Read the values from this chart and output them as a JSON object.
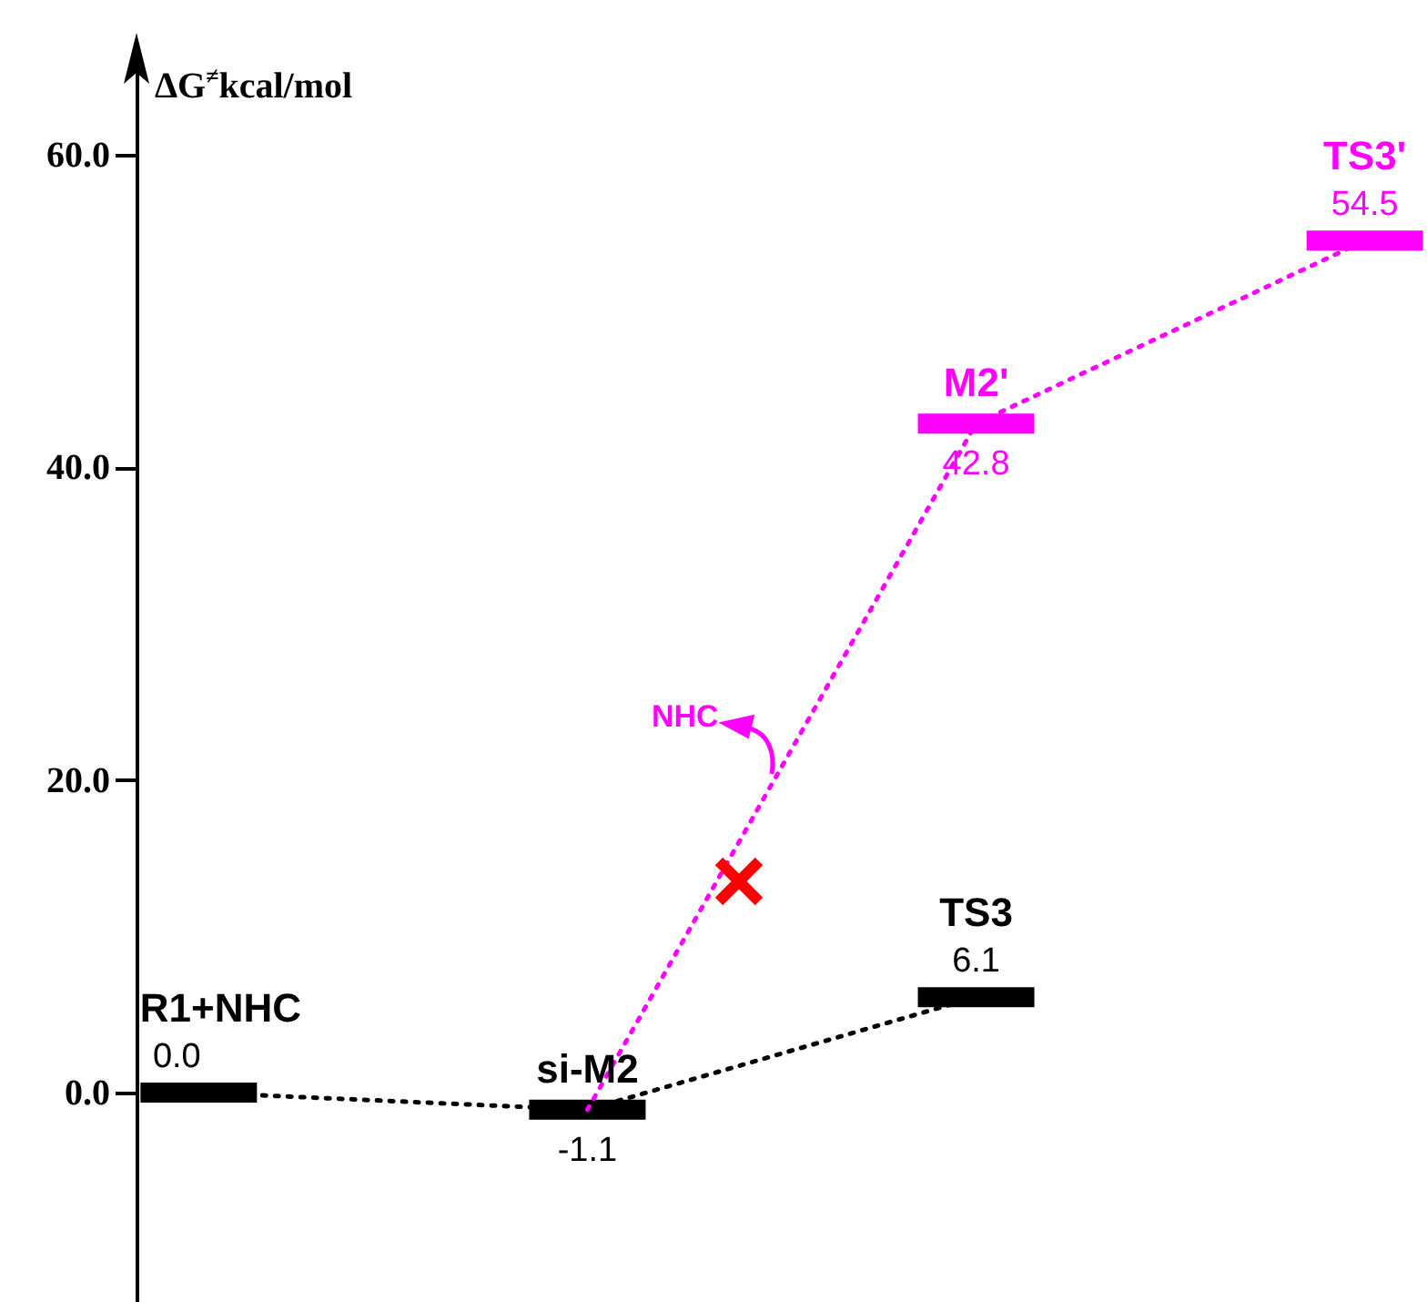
{
  "chart_data": {
    "type": "line",
    "ylabel": "ΔG$^{≠}$kcal/mol",
    "categories": [
      null,
      null,
      null,
      null
    ],
    "ylim": [
      -13.4,
      66.4
    ],
    "yticks": [
      {
        "value": 0,
        "label": "0.0"
      },
      {
        "value": 20,
        "label": "20.0"
      },
      {
        "value": 40,
        "label": "40.0"
      },
      {
        "value": 60,
        "label": "60.0"
      }
    ],
    "line_style": "dotted",
    "series": [
      {
        "color": "#000000",
        "values": [
          0.0,
          -1.1,
          6.1,
          null
        ],
        "value_labels": [
          "0.0",
          "-1.1",
          "6.1",
          null
        ]
      },
      {
        "color": "#ff00ff",
        "values": [
          null,
          -1.1,
          42.8,
          54.5
        ],
        "value_labels": [
          null,
          null,
          "42.8",
          "54.5"
        ]
      }
    ],
    "annotations": [
      {
        "text": "R1+NHC",
        "y": 0.0
      },
      {
        "text": "si-M2",
        "y": -1.1
      },
      {
        "text": "TS3",
        "y": 6.1
      },
      {
        "text": "M2'",
        "y": 42.8
      },
      {
        "text": "TS3'",
        "y": 54.5
      },
      "NHC"
    ]
  }
}
